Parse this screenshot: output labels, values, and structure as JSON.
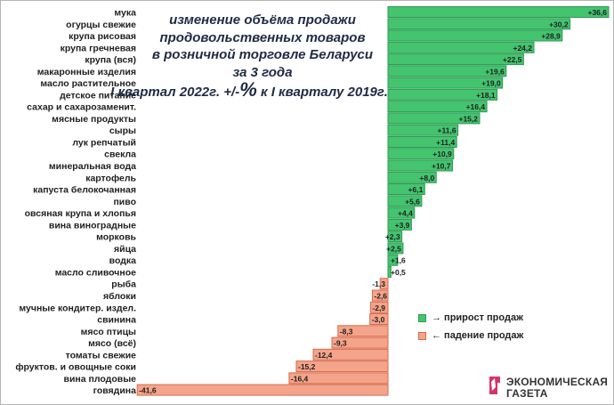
{
  "title": {
    "lines": [
      "изменение объёма продажи",
      "продовольственных товаров",
      "в розничной торговле Беларуси",
      "за 3 года"
    ],
    "subtitle_pre": "I квартал 2022г. +/-",
    "subtitle_pct": "%",
    "subtitle_post": " к I кварталу 2019г."
  },
  "legend": {
    "growth_label": "→ прирост продаж",
    "decline_label": "← падение продаж"
  },
  "logo": {
    "line1": "ЭКОНОМИЧЕСКАЯ",
    "line2": "ГАЗЕТА"
  },
  "colors": {
    "positive_fill": "#44c46f",
    "positive_border": "#2f9a53",
    "negative_fill": "#f4a48a",
    "negative_border": "#d86a4c",
    "logo_accent": "#d6336c"
  },
  "chart_data": {
    "type": "bar",
    "orientation": "horizontal",
    "categories": [
      "мука",
      "огурцы свежие",
      "крупа рисовая",
      "крупа гречневая",
      "крупа (вся)",
      "макаронные изделия",
      "масло растительное",
      "детское питание",
      "сахар и сахарозаменит.",
      "мясные продукты",
      "сыры",
      "лук репчатый",
      "свекла",
      "минеральная вода",
      "картофель",
      "капуста белокочанная",
      "пиво",
      "овсяная крупа и хлопья",
      "вина виноградные",
      "морковь",
      "яйца",
      "водка",
      "масло сливочное",
      "рыба",
      "яблоки",
      "мучные кондитер. издел.",
      "свинина",
      "мясо птицы",
      "мясо (всё)",
      "томаты свежие",
      "фруктов. и овощные соки",
      "вина плодовые",
      "говядина"
    ],
    "values": [
      36.6,
      30.2,
      28.9,
      24.2,
      22.5,
      19.6,
      19.0,
      18.1,
      16.4,
      15.2,
      11.6,
      11.4,
      10.9,
      10.7,
      8.0,
      6.1,
      5.6,
      4.4,
      3.9,
      2.3,
      2.5,
      1.6,
      0.5,
      -1.3,
      -2.6,
      -2.9,
      -3.0,
      -8.3,
      -9.3,
      -12.4,
      -15.2,
      -16.4,
      -41.6
    ],
    "data_labels": [
      "+36,6",
      "+30,2",
      "+28,9",
      "+24,2",
      "+22,5",
      "+19,6",
      "+19,0",
      "+18,1",
      "+16,4",
      "+15,2",
      "+11,6",
      "+11,4",
      "+10,9",
      "+10,7",
      "+8,0",
      "+6,1",
      "+5,6",
      "+4,4",
      "+3,9",
      "+2,3",
      "+2,5",
      "+1,6",
      "+0,5",
      "-1,3",
      "-2,6",
      "-2,9",
      "-3,0",
      "-8,3",
      "-9,3",
      "-12,4",
      "-15,2",
      "-16,4",
      "-41,6"
    ],
    "xlim": [
      -41.6,
      36.6
    ],
    "grid": false,
    "legend_position": "bottom-right"
  }
}
